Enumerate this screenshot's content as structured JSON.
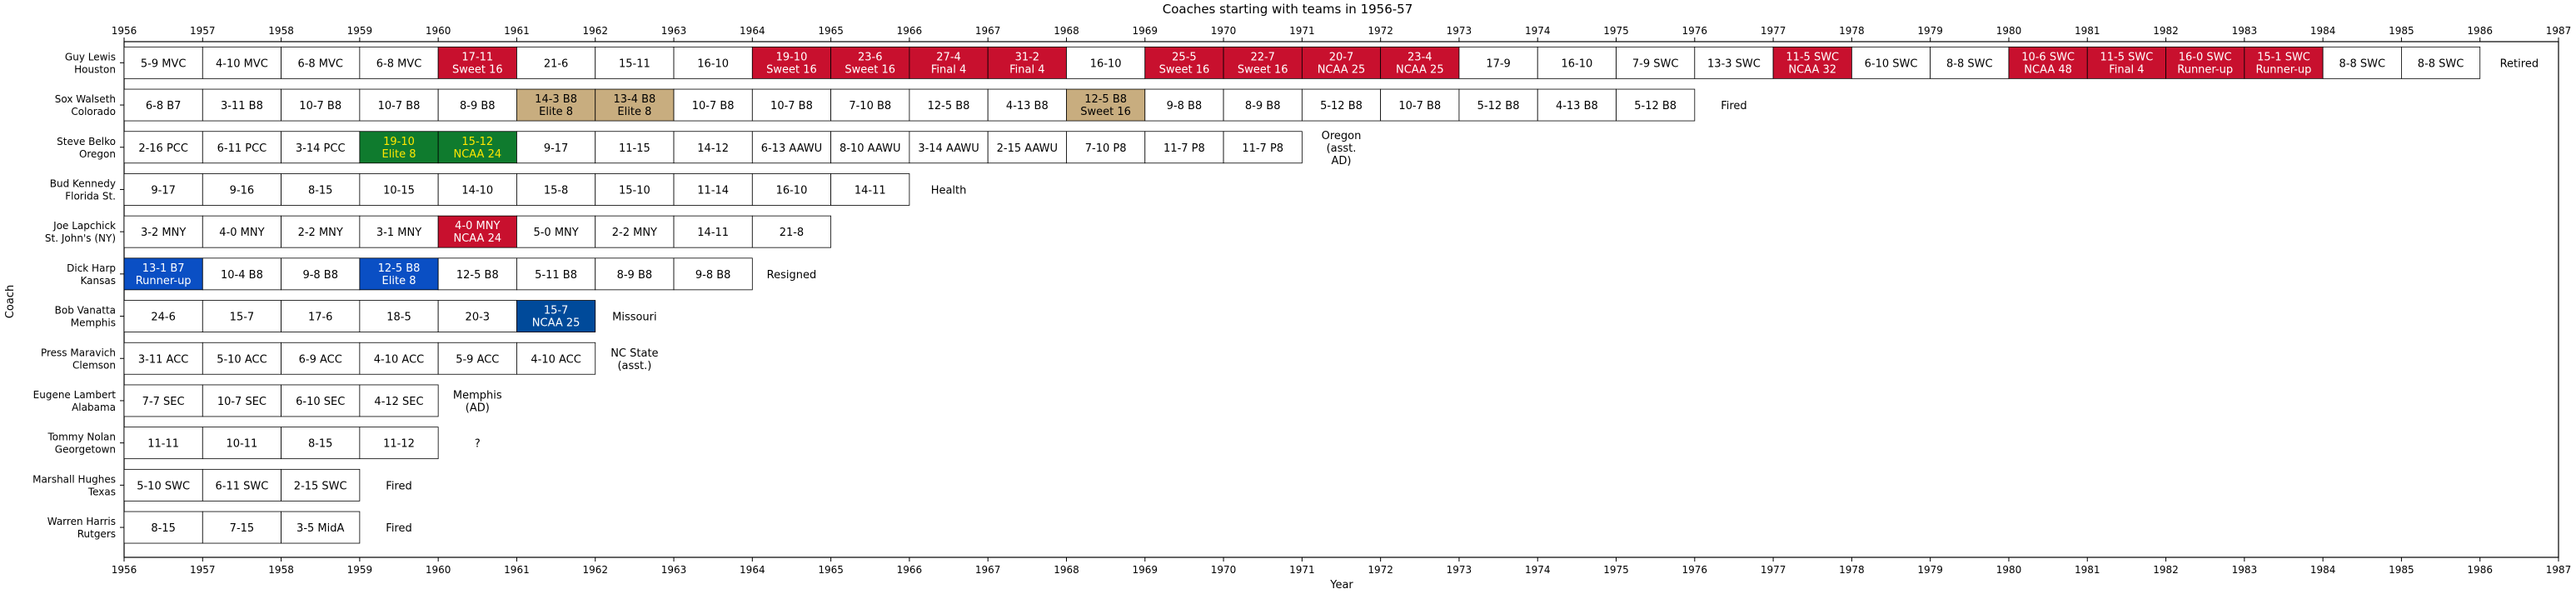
{
  "chart_data": {
    "type": "timeline",
    "title": "Coaches starting with teams in 1956-57",
    "xlabel": "Year",
    "ylabel": "Coach",
    "xlim": [
      1956,
      1987
    ],
    "x_ticks": [
      "1956",
      "1957",
      "1958",
      "1959",
      "1960",
      "1961",
      "1962",
      "1963",
      "1964",
      "1965",
      "1966",
      "1967",
      "1968",
      "1969",
      "1970",
      "1971",
      "1972",
      "1973",
      "1974",
      "1975",
      "1976",
      "1977",
      "1978",
      "1979",
      "1980",
      "1981",
      "1982",
      "1983",
      "1984",
      "1985",
      "1986",
      "1987"
    ],
    "colors": {
      "final_four": "#c8102e",
      "elite8_gold": "#c8ad7f",
      "elite8_green": "#0f7b2e",
      "green_text": "#ffe600",
      "runner_blue": "#0a4fc4",
      "ncaa_navy": "#004a9a",
      "plain": "#ffffff"
    },
    "coaches": [
      {
        "name": "Guy Lewis",
        "team": "Houston",
        "start": 1956,
        "outcome": "Retired",
        "seasons": [
          {
            "l1": "5-9 MVC",
            "l2": "",
            "c": "plain"
          },
          {
            "l1": "4-10 MVC",
            "l2": "",
            "c": "plain"
          },
          {
            "l1": "6-8 MVC",
            "l2": "",
            "c": "plain"
          },
          {
            "l1": "6-8 MVC",
            "l2": "",
            "c": "plain"
          },
          {
            "l1": "17-11",
            "l2": "Sweet 16",
            "c": "final_four"
          },
          {
            "l1": "21-6",
            "l2": "",
            "c": "plain"
          },
          {
            "l1": "15-11",
            "l2": "",
            "c": "plain"
          },
          {
            "l1": "16-10",
            "l2": "",
            "c": "plain"
          },
          {
            "l1": "19-10",
            "l2": "Sweet 16",
            "c": "final_four"
          },
          {
            "l1": "23-6",
            "l2": "Sweet 16",
            "c": "final_four"
          },
          {
            "l1": "27-4",
            "l2": "Final 4",
            "c": "final_four"
          },
          {
            "l1": "31-2",
            "l2": "Final 4",
            "c": "final_four"
          },
          {
            "l1": "16-10",
            "l2": "",
            "c": "plain"
          },
          {
            "l1": "25-5",
            "l2": "Sweet 16",
            "c": "final_four"
          },
          {
            "l1": "22-7",
            "l2": "Sweet 16",
            "c": "final_four"
          },
          {
            "l1": "20-7",
            "l2": "NCAA 25",
            "c": "final_four"
          },
          {
            "l1": "23-4",
            "l2": "NCAA 25",
            "c": "final_four"
          },
          {
            "l1": "17-9",
            "l2": "",
            "c": "plain"
          },
          {
            "l1": "16-10",
            "l2": "",
            "c": "plain"
          },
          {
            "l1": "7-9 SWC",
            "l2": "",
            "c": "plain"
          },
          {
            "l1": "13-3 SWC",
            "l2": "",
            "c": "plain"
          },
          {
            "l1": "11-5 SWC",
            "l2": "NCAA 32",
            "c": "final_four"
          },
          {
            "l1": "6-10 SWC",
            "l2": "",
            "c": "plain"
          },
          {
            "l1": "8-8 SWC",
            "l2": "",
            "c": "plain"
          },
          {
            "l1": "10-6 SWC",
            "l2": "NCAA 48",
            "c": "final_four"
          },
          {
            "l1": "11-5 SWC",
            "l2": "Final 4",
            "c": "final_four"
          },
          {
            "l1": "16-0 SWC",
            "l2": "Runner-up",
            "c": "final_four"
          },
          {
            "l1": "15-1 SWC",
            "l2": "Runner-up",
            "c": "final_four"
          },
          {
            "l1": "8-8 SWC",
            "l2": "",
            "c": "plain"
          },
          {
            "l1": "8-8 SWC",
            "l2": "",
            "c": "plain"
          }
        ]
      },
      {
        "name": "Sox Walseth",
        "team": "Colorado",
        "start": 1956,
        "outcome": "Fired",
        "seasons": [
          {
            "l1": "6-8 B7",
            "l2": "",
            "c": "plain"
          },
          {
            "l1": "3-11 B8",
            "l2": "",
            "c": "plain"
          },
          {
            "l1": "10-7 B8",
            "l2": "",
            "c": "plain"
          },
          {
            "l1": "10-7 B8",
            "l2": "",
            "c": "plain"
          },
          {
            "l1": "8-9 B8",
            "l2": "",
            "c": "plain"
          },
          {
            "l1": "14-3 B8",
            "l2": "Elite 8",
            "c": "elite8_gold"
          },
          {
            "l1": "13-4 B8",
            "l2": "Elite 8",
            "c": "elite8_gold"
          },
          {
            "l1": "10-7 B8",
            "l2": "",
            "c": "plain"
          },
          {
            "l1": "10-7 B8",
            "l2": "",
            "c": "plain"
          },
          {
            "l1": "7-10 B8",
            "l2": "",
            "c": "plain"
          },
          {
            "l1": "12-5 B8",
            "l2": "",
            "c": "plain"
          },
          {
            "l1": "4-13 B8",
            "l2": "",
            "c": "plain"
          },
          {
            "l1": "12-5 B8",
            "l2": "Sweet 16",
            "c": "elite8_gold"
          },
          {
            "l1": "9-8 B8",
            "l2": "",
            "c": "plain"
          },
          {
            "l1": "8-9 B8",
            "l2": "",
            "c": "plain"
          },
          {
            "l1": "5-12 B8",
            "l2": "",
            "c": "plain"
          },
          {
            "l1": "10-7 B8",
            "l2": "",
            "c": "plain"
          },
          {
            "l1": "5-12 B8",
            "l2": "",
            "c": "plain"
          },
          {
            "l1": "4-13 B8",
            "l2": "",
            "c": "plain"
          },
          {
            "l1": "5-12 B8",
            "l2": "",
            "c": "plain"
          }
        ]
      },
      {
        "name": "Steve Belko",
        "team": "Oregon",
        "start": 1956,
        "outcome": "Oregon\n(asst.\nAD)",
        "seasons": [
          {
            "l1": "2-16 PCC",
            "l2": "",
            "c": "plain"
          },
          {
            "l1": "6-11 PCC",
            "l2": "",
            "c": "plain"
          },
          {
            "l1": "3-14 PCC",
            "l2": "",
            "c": "plain"
          },
          {
            "l1": "19-10",
            "l2": "Elite 8",
            "c": "elite8_green"
          },
          {
            "l1": "15-12",
            "l2": "NCAA 24",
            "c": "elite8_green"
          },
          {
            "l1": "9-17",
            "l2": "",
            "c": "plain"
          },
          {
            "l1": "11-15",
            "l2": "",
            "c": "plain"
          },
          {
            "l1": "14-12",
            "l2": "",
            "c": "plain"
          },
          {
            "l1": "6-13 AAWU",
            "l2": "",
            "c": "plain"
          },
          {
            "l1": "8-10 AAWU",
            "l2": "",
            "c": "plain"
          },
          {
            "l1": "3-14 AAWU",
            "l2": "",
            "c": "plain"
          },
          {
            "l1": "2-15 AAWU",
            "l2": "",
            "c": "plain"
          },
          {
            "l1": "7-10 P8",
            "l2": "",
            "c": "plain"
          },
          {
            "l1": "11-7 P8",
            "l2": "",
            "c": "plain"
          },
          {
            "l1": "11-7 P8",
            "l2": "",
            "c": "plain"
          }
        ]
      },
      {
        "name": "Bud Kennedy",
        "team": "Florida St.",
        "start": 1956,
        "outcome": "Health",
        "seasons": [
          {
            "l1": "9-17",
            "l2": "",
            "c": "plain"
          },
          {
            "l1": "9-16",
            "l2": "",
            "c": "plain"
          },
          {
            "l1": "8-15",
            "l2": "",
            "c": "plain"
          },
          {
            "l1": "10-15",
            "l2": "",
            "c": "plain"
          },
          {
            "l1": "14-10",
            "l2": "",
            "c": "plain"
          },
          {
            "l1": "15-8",
            "l2": "",
            "c": "plain"
          },
          {
            "l1": "15-10",
            "l2": "",
            "c": "plain"
          },
          {
            "l1": "11-14",
            "l2": "",
            "c": "plain"
          },
          {
            "l1": "16-10",
            "l2": "",
            "c": "plain"
          },
          {
            "l1": "14-11",
            "l2": "",
            "c": "plain"
          }
        ]
      },
      {
        "name": "Joe Lapchick",
        "team": "St. John's (NY)",
        "start": 1956,
        "outcome": "",
        "seasons": [
          {
            "l1": "3-2 MNY",
            "l2": "",
            "c": "plain"
          },
          {
            "l1": "4-0 MNY",
            "l2": "",
            "c": "plain"
          },
          {
            "l1": "2-2 MNY",
            "l2": "",
            "c": "plain"
          },
          {
            "l1": "3-1 MNY",
            "l2": "",
            "c": "plain"
          },
          {
            "l1": "4-0 MNY",
            "l2": "NCAA 24",
            "c": "final_four"
          },
          {
            "l1": "5-0 MNY",
            "l2": "",
            "c": "plain"
          },
          {
            "l1": "2-2 MNY",
            "l2": "",
            "c": "plain"
          },
          {
            "l1": "14-11",
            "l2": "",
            "c": "plain"
          },
          {
            "l1": "21-8",
            "l2": "",
            "c": "plain"
          }
        ]
      },
      {
        "name": "Dick Harp",
        "team": "Kansas",
        "start": 1956,
        "outcome": "Resigned",
        "seasons": [
          {
            "l1": "13-1 B7",
            "l2": "Runner-up",
            "c": "runner_blue"
          },
          {
            "l1": "10-4 B8",
            "l2": "",
            "c": "plain"
          },
          {
            "l1": "9-8 B8",
            "l2": "",
            "c": "plain"
          },
          {
            "l1": "12-5 B8",
            "l2": "Elite 8",
            "c": "runner_blue"
          },
          {
            "l1": "12-5 B8",
            "l2": "",
            "c": "plain"
          },
          {
            "l1": "5-11 B8",
            "l2": "",
            "c": "plain"
          },
          {
            "l1": "8-9 B8",
            "l2": "",
            "c": "plain"
          },
          {
            "l1": "9-8 B8",
            "l2": "",
            "c": "plain"
          }
        ]
      },
      {
        "name": "Bob Vanatta",
        "team": "Memphis",
        "start": 1956,
        "outcome": "Missouri",
        "seasons": [
          {
            "l1": "24-6",
            "l2": "",
            "c": "plain"
          },
          {
            "l1": "15-7",
            "l2": "",
            "c": "plain"
          },
          {
            "l1": "17-6",
            "l2": "",
            "c": "plain"
          },
          {
            "l1": "18-5",
            "l2": "",
            "c": "plain"
          },
          {
            "l1": "20-3",
            "l2": "",
            "c": "plain"
          },
          {
            "l1": "15-7",
            "l2": "NCAA 25",
            "c": "ncaa_navy"
          }
        ]
      },
      {
        "name": "Press Maravich",
        "team": "Clemson",
        "start": 1956,
        "outcome": "NC State\n(asst.)",
        "seasons": [
          {
            "l1": "3-11 ACC",
            "l2": "",
            "c": "plain"
          },
          {
            "l1": "5-10 ACC",
            "l2": "",
            "c": "plain"
          },
          {
            "l1": "6-9 ACC",
            "l2": "",
            "c": "plain"
          },
          {
            "l1": "4-10 ACC",
            "l2": "",
            "c": "plain"
          },
          {
            "l1": "5-9 ACC",
            "l2": "",
            "c": "plain"
          },
          {
            "l1": "4-10 ACC",
            "l2": "",
            "c": "plain"
          }
        ]
      },
      {
        "name": "Eugene Lambert",
        "team": "Alabama",
        "start": 1956,
        "outcome": "Memphis\n(AD)",
        "seasons": [
          {
            "l1": "7-7 SEC",
            "l2": "",
            "c": "plain"
          },
          {
            "l1": "10-7 SEC",
            "l2": "",
            "c": "plain"
          },
          {
            "l1": "6-10 SEC",
            "l2": "",
            "c": "plain"
          },
          {
            "l1": "4-12 SEC",
            "l2": "",
            "c": "plain"
          }
        ]
      },
      {
        "name": "Tommy Nolan",
        "team": "Georgetown",
        "start": 1956,
        "outcome": "?",
        "seasons": [
          {
            "l1": "11-11",
            "l2": "",
            "c": "plain"
          },
          {
            "l1": "10-11",
            "l2": "",
            "c": "plain"
          },
          {
            "l1": "8-15",
            "l2": "",
            "c": "plain"
          },
          {
            "l1": "11-12",
            "l2": "",
            "c": "plain"
          }
        ]
      },
      {
        "name": "Marshall Hughes",
        "team": "Texas",
        "start": 1956,
        "outcome": "Fired",
        "seasons": [
          {
            "l1": "5-10 SWC",
            "l2": "",
            "c": "plain"
          },
          {
            "l1": "6-11 SWC",
            "l2": "",
            "c": "plain"
          },
          {
            "l1": "2-15 SWC",
            "l2": "",
            "c": "plain"
          }
        ]
      },
      {
        "name": "Warren Harris",
        "team": "Rutgers",
        "start": 1956,
        "outcome": "Fired",
        "seasons": [
          {
            "l1": "8-15",
            "l2": "",
            "c": "plain"
          },
          {
            "l1": "7-15",
            "l2": "",
            "c": "plain"
          },
          {
            "l1": "3-5 MidA",
            "l2": "",
            "c": "plain"
          }
        ]
      }
    ]
  }
}
